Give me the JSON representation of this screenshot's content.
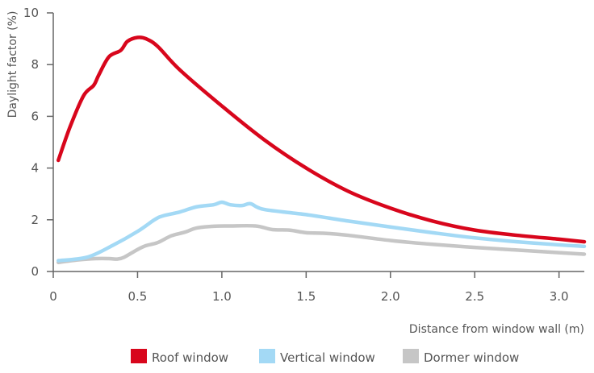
{
  "chart_data": {
    "type": "line",
    "title": "",
    "xlabel": "Distance from window wall (m)",
    "ylabel": "Daylight factor (%)",
    "xlim": [
      0,
      3.15
    ],
    "ylim": [
      0,
      10
    ],
    "xticks": [
      0,
      0.5,
      1.0,
      1.5,
      2.0,
      2.5,
      3.0
    ],
    "xtick_labels": [
      "0",
      "0.5",
      "1.0",
      "1.5",
      "2.0",
      "2.5",
      "3.0"
    ],
    "yticks": [
      0,
      2,
      4,
      6,
      8,
      10
    ],
    "ytick_labels": [
      "0",
      "2",
      "4",
      "6",
      "8",
      "10"
    ],
    "grid": false,
    "legend_position": "bottom",
    "series": [
      {
        "name": "Roof window",
        "color": "#d8061c",
        "x": [
          0.03,
          0.1,
          0.18,
          0.24,
          0.27,
          0.33,
          0.4,
          0.44,
          0.5,
          0.55,
          0.62,
          0.75,
          1.0,
          1.25,
          1.5,
          1.75,
          2.0,
          2.25,
          2.5,
          2.75,
          3.0,
          3.15
        ],
        "y": [
          4.3,
          5.6,
          6.8,
          7.2,
          7.6,
          8.3,
          8.55,
          8.9,
          9.05,
          9.0,
          8.7,
          7.8,
          6.4,
          5.1,
          4.0,
          3.1,
          2.45,
          1.95,
          1.6,
          1.4,
          1.25,
          1.15
        ]
      },
      {
        "name": "Vertical window",
        "color": "#a3d9f5",
        "x": [
          0.03,
          0.2,
          0.35,
          0.5,
          0.6,
          0.65,
          0.75,
          0.85,
          0.95,
          1.0,
          1.05,
          1.12,
          1.17,
          1.25,
          1.5,
          1.75,
          2.0,
          2.25,
          2.5,
          2.75,
          3.0,
          3.15
        ],
        "y": [
          0.42,
          0.55,
          1.0,
          1.55,
          2.0,
          2.15,
          2.3,
          2.5,
          2.58,
          2.68,
          2.58,
          2.55,
          2.62,
          2.4,
          2.2,
          1.95,
          1.72,
          1.5,
          1.3,
          1.15,
          1.03,
          0.97
        ]
      },
      {
        "name": "Dormer window",
        "color": "#c6c6c6",
        "x": [
          0.03,
          0.15,
          0.25,
          0.33,
          0.38,
          0.42,
          0.5,
          0.55,
          0.62,
          0.7,
          0.78,
          0.85,
          0.95,
          1.05,
          1.2,
          1.3,
          1.4,
          1.5,
          1.6,
          1.75,
          2.0,
          2.25,
          2.5,
          2.75,
          3.0,
          3.15
        ],
        "y": [
          0.35,
          0.45,
          0.5,
          0.5,
          0.48,
          0.55,
          0.85,
          1.0,
          1.12,
          1.38,
          1.52,
          1.68,
          1.75,
          1.76,
          1.76,
          1.62,
          1.6,
          1.5,
          1.48,
          1.4,
          1.2,
          1.05,
          0.93,
          0.83,
          0.73,
          0.67
        ]
      }
    ]
  }
}
